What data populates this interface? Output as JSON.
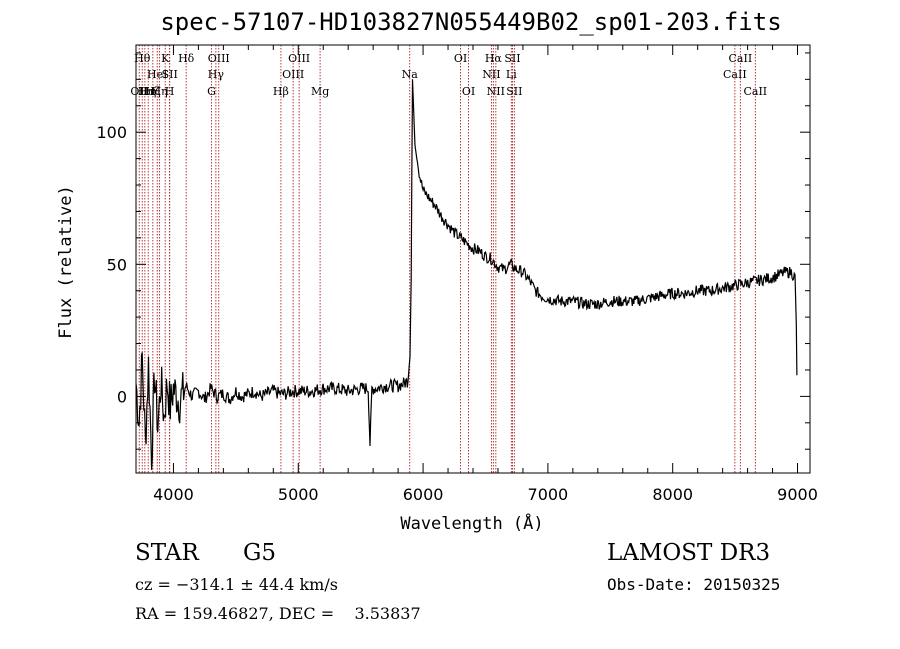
{
  "chart_data": {
    "type": "line",
    "title": "spec-57107-HD103827N055449B02_sp01-203.fits",
    "xlabel": "Wavelength (Å)",
    "ylabel": "Flux (relative)",
    "xlim": [
      3700,
      9100
    ],
    "ylim": [
      -29,
      133
    ],
    "xticks": [
      4000,
      5000,
      6000,
      7000,
      8000,
      9000
    ],
    "yticks": [
      0,
      50,
      100
    ],
    "grid": false,
    "line_color": "#000000",
    "marker_color": "#b22222",
    "series": [
      {
        "x": [
          3700,
          3725,
          3750,
          3775,
          3800,
          3825,
          3850,
          3875,
          3900,
          3925,
          3950,
          3975,
          4000,
          4050,
          4100,
          4150,
          4200,
          4250,
          4300,
          4350,
          4400,
          4450,
          4500,
          4550,
          4600,
          4650,
          4700,
          4750,
          4800,
          4850,
          4900,
          4950,
          5000,
          5100,
          5200,
          5300,
          5400,
          5500,
          5560,
          5575,
          5590,
          5620,
          5700,
          5800,
          5850,
          5880,
          5895,
          5905,
          5915,
          5925,
          5935,
          5950,
          5975,
          6000,
          6050,
          6100,
          6150,
          6200,
          6250,
          6300,
          6350,
          6400,
          6450,
          6500,
          6550,
          6600,
          6650,
          6700,
          6750,
          6800,
          6850,
          6900,
          6950,
          7000,
          7100,
          7200,
          7300,
          7400,
          7500,
          7600,
          7700,
          7800,
          7900,
          8000,
          8100,
          8200,
          8300,
          8400,
          8500,
          8600,
          8700,
          8800,
          8850,
          8900,
          8950,
          8980,
          8990,
          8995
        ],
        "y": [
          5,
          -10,
          15,
          -18,
          12,
          -22,
          8,
          -12,
          6,
          -8,
          5,
          -4,
          3,
          -2,
          4,
          0,
          2,
          -1,
          3,
          0,
          1,
          -1,
          2,
          0,
          1,
          2,
          0,
          1,
          2,
          1,
          1,
          2,
          2,
          2,
          3,
          3,
          2,
          3,
          3,
          -18,
          3,
          3,
          4,
          4,
          5,
          6,
          15,
          45,
          120,
          108,
          95,
          90,
          83,
          78,
          75,
          72,
          68,
          65,
          62,
          60,
          58,
          56,
          55,
          53,
          52,
          49,
          48,
          50,
          48,
          47,
          44,
          40,
          38,
          37,
          36,
          36,
          35,
          35,
          36,
          36,
          36,
          37,
          38,
          39,
          39,
          40,
          40,
          41,
          42,
          43,
          44,
          45,
          46,
          47,
          47,
          45,
          28,
          8
        ]
      }
    ],
    "lines": [
      {
        "wl": 3726,
        "labels": [
          "OII"
        ],
        "row": 3,
        "rows": 1
      },
      {
        "wl": 3750,
        "labels": [
          "Hθ"
        ],
        "row": 1,
        "rows": 1
      },
      {
        "wl": 3771,
        "labels": [
          "Hι"
        ],
        "row": 3,
        "rows": 1
      },
      {
        "wl": 3798,
        "labels": [
          "Hη"
        ],
        "row": 3,
        "rows": 1
      },
      {
        "wl": 3835,
        "labels": [
          "Hζ"
        ],
        "row": 3,
        "rows": 1
      },
      {
        "wl": 3870,
        "labels": [
          "HeI"
        ],
        "row": 2,
        "rows": 1
      },
      {
        "wl": 3889,
        "labels": [
          "Hη"
        ],
        "row": 3,
        "rows": 1
      },
      {
        "wl": 3934,
        "labels": [
          "K"
        ],
        "row": 1,
        "rows": 1
      },
      {
        "wl": 3970,
        "labels": [
          "SII"
        ],
        "row": 2,
        "rows": 1
      },
      {
        "wl": 3969,
        "labels": [
          "H"
        ],
        "row": 3,
        "rows": 1
      },
      {
        "wl": 4102,
        "labels": [
          "Hδ"
        ],
        "row": 1,
        "rows": 1
      },
      {
        "wl": 4305,
        "labels": [
          "G"
        ],
        "row": 3,
        "rows": 1
      },
      {
        "wl": 4340,
        "labels": [
          "Hγ"
        ],
        "row": 2,
        "rows": 1
      },
      {
        "wl": 4363,
        "labels": [
          "OIII"
        ],
        "row": 1,
        "rows": 1
      },
      {
        "wl": 4861,
        "labels": [
          "Hβ"
        ],
        "row": 3,
        "rows": 1
      },
      {
        "wl": 4959,
        "labels": [
          "OIII"
        ],
        "row": 2,
        "rows": 1
      },
      {
        "wl": 5007,
        "labels": [
          "OIII"
        ],
        "row": 1,
        "rows": 1
      },
      {
        "wl": 5175,
        "labels": [
          "Mg"
        ],
        "row": 3,
        "rows": 1
      },
      {
        "wl": 5893,
        "labels": [
          "Na"
        ],
        "row": 2,
        "rows": 1
      },
      {
        "wl": 6300,
        "labels": [
          "OI"
        ],
        "row": 1,
        "rows": 1
      },
      {
        "wl": 6364,
        "labels": [
          "OI"
        ],
        "row": 3,
        "rows": 1
      },
      {
        "wl": 6548,
        "labels": [
          "NII"
        ],
        "row": 2,
        "rows": 1
      },
      {
        "wl": 6563,
        "labels": [
          "Hα"
        ],
        "row": 1,
        "rows": 1
      },
      {
        "wl": 6583,
        "labels": [
          "NII"
        ],
        "row": 3,
        "rows": 1
      },
      {
        "wl": 6707,
        "labels": [
          "Li"
        ],
        "row": 2,
        "rows": 1
      },
      {
        "wl": 6716,
        "labels": [
          "SII"
        ],
        "row": 1,
        "rows": 1
      },
      {
        "wl": 6731,
        "labels": [
          "SII"
        ],
        "row": 3,
        "rows": 1
      },
      {
        "wl": 8498,
        "labels": [
          "CaII"
        ],
        "row": 2,
        "rows": 1
      },
      {
        "wl": 8542,
        "labels": [
          "CaII"
        ],
        "row": 1,
        "rows": 1
      },
      {
        "wl": 8662,
        "labels": [
          "CaII"
        ],
        "row": 3,
        "rows": 1
      }
    ]
  },
  "info": {
    "class": "STAR",
    "subclass": "G5",
    "survey": "LAMOST DR3",
    "cz": "cz = −314.1 ± 44.4 km/s",
    "obsdate": "Obs-Date: 20150325",
    "radec": "RA = 159.46827, DEC =    3.53837"
  }
}
